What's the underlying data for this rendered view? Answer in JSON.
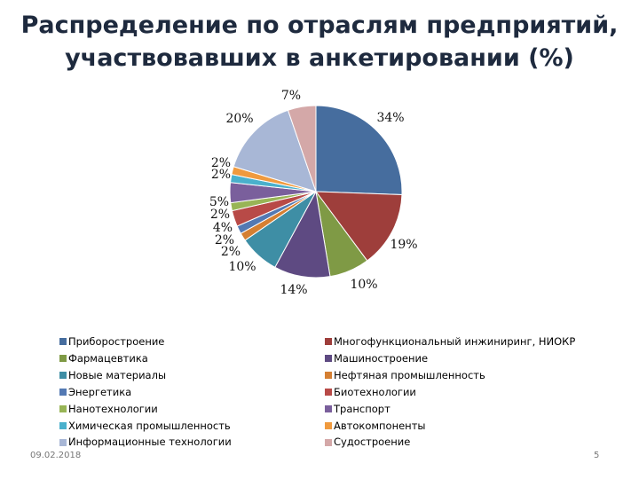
{
  "slide": {
    "title_line1": "Распределение по отраслям предприятий,",
    "title_line2": "участвовавших в анкетировании (%)",
    "date": "09.02.2018",
    "page_number": "5"
  },
  "chart_data": {
    "type": "pie",
    "title": "Распределение по отраслям предприятий, участвовавших в анкетировании (%)",
    "legend_placement": "bottom, two columns",
    "start": "12 o'clock, clockwise",
    "slices": [
      {
        "name": "Приборостроение",
        "value": 34,
        "label": "34%",
        "color": "#466d9e"
      },
      {
        "name": "Многофункциональный инжиниринг, НИОКР",
        "value": 19,
        "label": "19%",
        "color": "#9e3e3b"
      },
      {
        "name": "Фармацевтика",
        "value": 10,
        "label": "10%",
        "color": "#7f9a45"
      },
      {
        "name": "Машиностроение",
        "value": 14,
        "label": "14%",
        "color": "#5e4a82"
      },
      {
        "name": "Новые материалы",
        "value": 10,
        "label": "10%",
        "color": "#3e8ea5"
      },
      {
        "name": "Нефтяная промышленность",
        "value": 2,
        "label": "2%",
        "color": "#d57f32"
      },
      {
        "name": "Энергетика",
        "value": 2,
        "label": "2%",
        "color": "#5379b3"
      },
      {
        "name": "Биотехнологии",
        "value": 4,
        "label": "4%",
        "color": "#b84a47"
      },
      {
        "name": "Нанотехнологии",
        "value": 2,
        "label": "2%",
        "color": "#98b556"
      },
      {
        "name": "Транспорт",
        "value": 5,
        "label": "5%",
        "color": "#7a5f9c"
      },
      {
        "name": "Химическая промышленность",
        "value": 2,
        "label": "2%",
        "color": "#4ab0cc"
      },
      {
        "name": "Автокомпоненты",
        "value": 2,
        "label": "2%",
        "color": "#f09a3e"
      },
      {
        "name": "Информационные технологии",
        "value": 20,
        "label": "20%",
        "color": "#a8b7d6"
      },
      {
        "name": "Судостроение",
        "value": 7,
        "label": "7%",
        "color": "#d4a8a8"
      }
    ]
  }
}
